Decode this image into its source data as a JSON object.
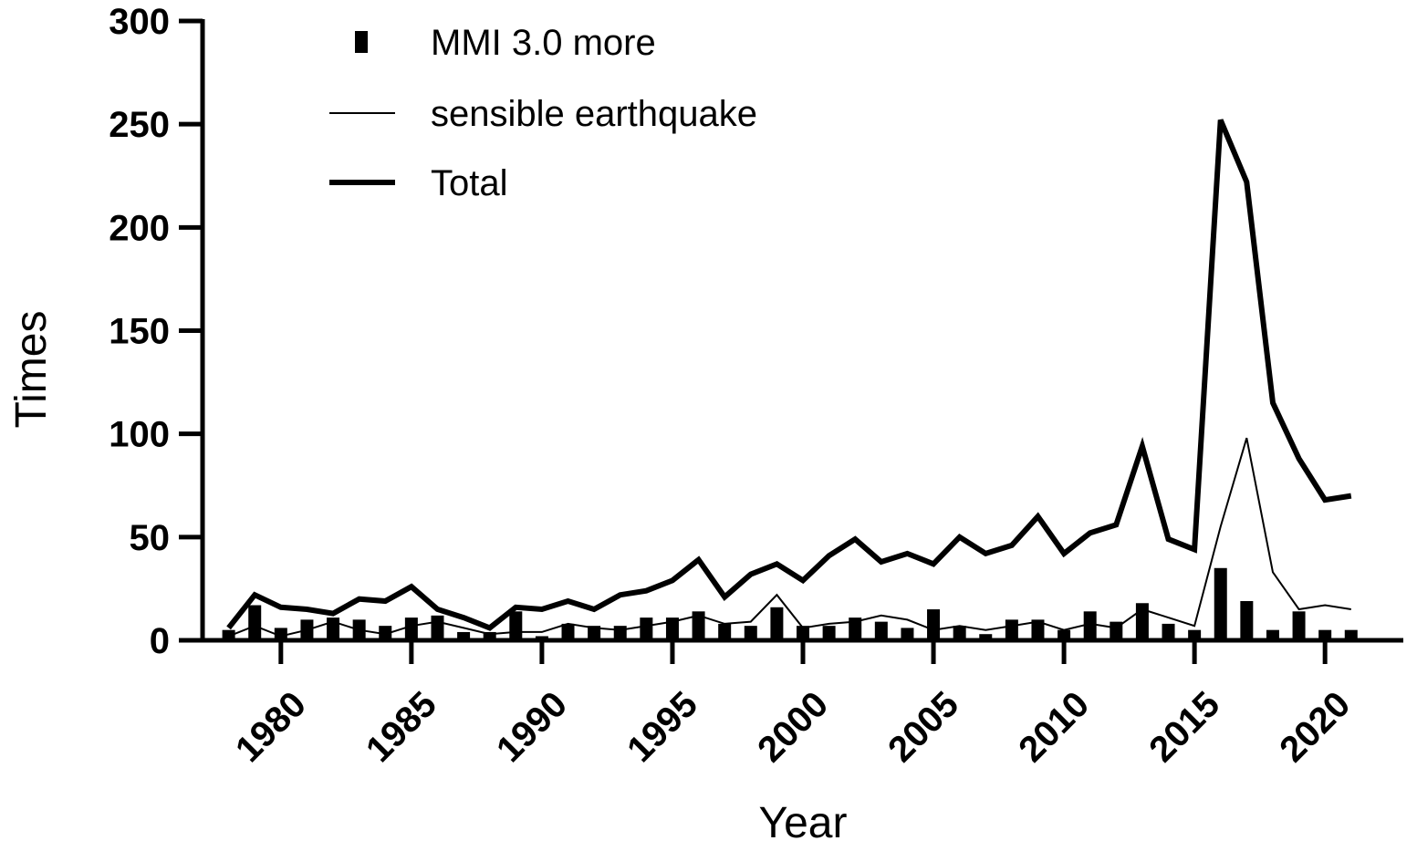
{
  "chart_data": {
    "type": "bar",
    "title": "",
    "xlabel": "Year",
    "ylabel": "Times",
    "ylim": [
      0,
      300
    ],
    "xlim": [
      1977,
      2023
    ],
    "y_ticks": [
      0,
      50,
      100,
      150,
      200,
      250,
      300
    ],
    "x_ticks": [
      1980,
      1985,
      1990,
      1995,
      2000,
      2005,
      2010,
      2015,
      2020
    ],
    "grid": false,
    "legend_position": "top-left",
    "colors": {
      "series": "#000000",
      "background": "#ffffff"
    },
    "x": [
      1978,
      1979,
      1980,
      1981,
      1982,
      1983,
      1984,
      1985,
      1986,
      1987,
      1988,
      1989,
      1990,
      1991,
      1992,
      1993,
      1994,
      1995,
      1996,
      1997,
      1998,
      1999,
      2000,
      2001,
      2002,
      2003,
      2004,
      2005,
      2006,
      2007,
      2008,
      2009,
      2010,
      2011,
      2012,
      2013,
      2014,
      2015,
      2016,
      2017,
      2018,
      2019,
      2020,
      2021
    ],
    "series": [
      {
        "name": "MMI 3.0 more",
        "kind": "bar",
        "values": [
          5,
          17,
          6,
          10,
          11,
          10,
          7,
          11,
          12,
          4,
          4,
          14,
          2,
          8,
          7,
          7,
          11,
          11,
          14,
          8,
          7,
          16,
          7,
          7,
          11,
          9,
          6,
          15,
          7,
          3,
          10,
          10,
          5,
          14,
          9,
          18,
          8,
          5,
          35,
          19,
          5,
          14,
          5,
          5
        ]
      },
      {
        "name": "sensible earthquake",
        "kind": "thin-line",
        "values": [
          2,
          7,
          2,
          5,
          9,
          5,
          3,
          7,
          9,
          6,
          3,
          4,
          4,
          8,
          6,
          5,
          7,
          9,
          12,
          8,
          9,
          22,
          6,
          8,
          9,
          12,
          10,
          5,
          7,
          5,
          7,
          9,
          5,
          8,
          6,
          15,
          11,
          7,
          55,
          98,
          33,
          15,
          17,
          15
        ]
      },
      {
        "name": "Total",
        "kind": "thick-line",
        "values": [
          6,
          22,
          16,
          15,
          13,
          20,
          19,
          26,
          15,
          11,
          6,
          16,
          15,
          19,
          15,
          22,
          24,
          29,
          39,
          21,
          32,
          37,
          29,
          41,
          49,
          38,
          42,
          37,
          50,
          42,
          46,
          60,
          42,
          52,
          56,
          94,
          49,
          44,
          252,
          222,
          115,
          88,
          68,
          70
        ]
      }
    ]
  }
}
